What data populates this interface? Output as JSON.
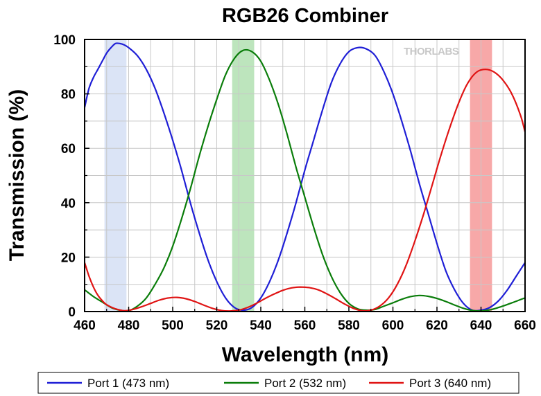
{
  "chart_data": {
    "type": "line",
    "title": "RGB26 Combiner",
    "xlabel": "Wavelength (nm)",
    "ylabel": "Transmission (%)",
    "xlim": [
      460,
      660
    ],
    "ylim": [
      0,
      100
    ],
    "xticks": [
      460,
      480,
      500,
      520,
      540,
      560,
      580,
      600,
      620,
      640,
      660
    ],
    "yticks": [
      0,
      20,
      40,
      60,
      80,
      100
    ],
    "grid": true,
    "legend_position": "bottom",
    "watermark": "THORLABS",
    "highlight_bands": [
      {
        "x": [
          469,
          479
        ],
        "color": "#dbe4f6"
      },
      {
        "x": [
          527,
          537
        ],
        "color": "#bde5bd"
      },
      {
        "x": [
          635,
          645
        ],
        "color": "#f7a8a8"
      }
    ],
    "series": [
      {
        "name": "Port 1 (473 nm)",
        "color": "#1f1fd6",
        "x": [
          460,
          462,
          464,
          466,
          468,
          470,
          472,
          474,
          476,
          478,
          480,
          484,
          488,
          492,
          496,
          500,
          504,
          508,
          512,
          516,
          520,
          524,
          528,
          532,
          536,
          540,
          544,
          548,
          552,
          556,
          560,
          564,
          568,
          572,
          576,
          580,
          584,
          588,
          592,
          596,
          600,
          604,
          608,
          612,
          616,
          620,
          624,
          628,
          632,
          636,
          640,
          644,
          648,
          652,
          656,
          660
        ],
        "values": [
          75,
          82,
          86,
          89,
          92,
          95,
          97,
          98.5,
          98.5,
          98,
          97,
          94,
          89,
          82,
          73,
          63,
          52,
          40,
          29,
          19,
          11,
          5,
          1.5,
          0.5,
          1.5,
          5,
          11,
          19,
          29,
          40,
          52,
          63,
          74,
          84,
          91,
          95.5,
          97,
          96.5,
          94,
          88,
          80,
          70,
          59,
          47,
          36,
          25,
          15,
          8,
          3,
          0.5,
          0.5,
          1.5,
          4,
          8,
          13,
          18
        ]
      },
      {
        "name": "Port 2 (532 nm)",
        "color": "#0a7d0a",
        "x": [
          460,
          464,
          468,
          472,
          476,
          480,
          484,
          488,
          492,
          496,
          500,
          504,
          508,
          512,
          516,
          520,
          524,
          528,
          532,
          536,
          540,
          544,
          548,
          552,
          556,
          560,
          564,
          568,
          572,
          576,
          580,
          584,
          588,
          592,
          596,
          600,
          604,
          608,
          612,
          616,
          620,
          624,
          628,
          632,
          636,
          640,
          644,
          648,
          652,
          656,
          660
        ],
        "values": [
          8,
          5.5,
          3.5,
          1.5,
          0.5,
          0.3,
          2,
          5,
          10,
          16,
          24,
          34,
          45,
          57,
          68,
          78,
          87,
          93,
          96,
          95.5,
          92,
          85,
          76,
          65,
          53,
          42,
          31,
          21,
          13,
          7,
          3,
          1,
          0.5,
          0.8,
          2,
          3.2,
          4.5,
          5.5,
          5.9,
          5.6,
          4.8,
          3.7,
          2.4,
          1.2,
          0.4,
          0.2,
          0.6,
          1.5,
          2.6,
          3.8,
          5
        ]
      },
      {
        "name": "Port 3 (640 nm)",
        "color": "#e01414",
        "x": [
          460,
          462,
          464,
          466,
          468,
          470,
          474,
          478,
          482,
          486,
          490,
          494,
          498,
          502,
          506,
          510,
          514,
          518,
          522,
          526,
          530,
          534,
          538,
          542,
          546,
          550,
          554,
          558,
          562,
          566,
          570,
          574,
          578,
          582,
          586,
          590,
          594,
          598,
          602,
          606,
          610,
          614,
          618,
          622,
          626,
          630,
          634,
          638,
          642,
          646,
          650,
          654,
          658,
          660
        ],
        "values": [
          18,
          13,
          9,
          6,
          4,
          2.5,
          1,
          0.3,
          0.8,
          1.8,
          3,
          4.2,
          5,
          5.2,
          4.7,
          3.7,
          2.4,
          1.2,
          0.4,
          0.2,
          0.5,
          1.5,
          3,
          4.8,
          6.4,
          7.8,
          8.7,
          9,
          8.8,
          8,
          6.5,
          4.7,
          2.8,
          1.2,
          0.3,
          0.5,
          2,
          5,
          10,
          17,
          26,
          36,
          47,
          58,
          68,
          77,
          84,
          88,
          89,
          88,
          85,
          80,
          72,
          66
        ]
      }
    ]
  }
}
